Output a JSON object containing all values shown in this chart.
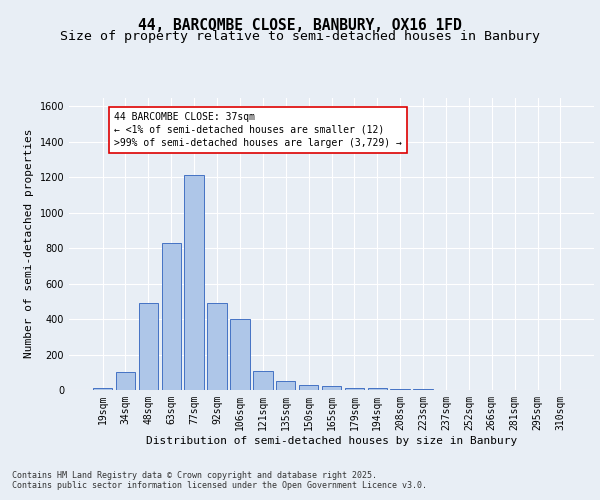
{
  "title1": "44, BARCOMBE CLOSE, BANBURY, OX16 1FD",
  "title2": "Size of property relative to semi-detached houses in Banbury",
  "xlabel": "Distribution of semi-detached houses by size in Banbury",
  "ylabel": "Number of semi-detached properties",
  "annotation_title": "44 BARCOMBE CLOSE: 37sqm",
  "annotation_line1": "← <1% of semi-detached houses are smaller (12)",
  "annotation_line2": ">99% of semi-detached houses are larger (3,729) →",
  "footnote1": "Contains HM Land Registry data © Crown copyright and database right 2025.",
  "footnote2": "Contains public sector information licensed under the Open Government Licence v3.0.",
  "categories": [
    "19sqm",
    "34sqm",
    "48sqm",
    "63sqm",
    "77sqm",
    "92sqm",
    "106sqm",
    "121sqm",
    "135sqm",
    "150sqm",
    "165sqm",
    "179sqm",
    "194sqm",
    "208sqm",
    "223sqm",
    "237sqm",
    "252sqm",
    "266sqm",
    "281sqm",
    "295sqm",
    "310sqm"
  ],
  "values": [
    10,
    100,
    490,
    830,
    1215,
    490,
    400,
    105,
    50,
    30,
    20,
    10,
    10,
    5,
    3,
    2,
    2,
    1,
    1,
    1,
    1
  ],
  "bar_color": "#aec6e8",
  "bar_edge_color": "#4472c4",
  "background_color": "#e8eef5",
  "plot_bg_color": "#e8eef5",
  "ylim": [
    0,
    1650
  ],
  "yticks": [
    0,
    200,
    400,
    600,
    800,
    1000,
    1200,
    1400,
    1600
  ],
  "grid_color": "#ffffff",
  "annotation_box_color": "#dd0000",
  "title_fontsize": 10.5,
  "subtitle_fontsize": 9.5,
  "axis_label_fontsize": 8,
  "tick_fontsize": 7,
  "annotation_fontsize": 7,
  "footnote_fontsize": 6
}
